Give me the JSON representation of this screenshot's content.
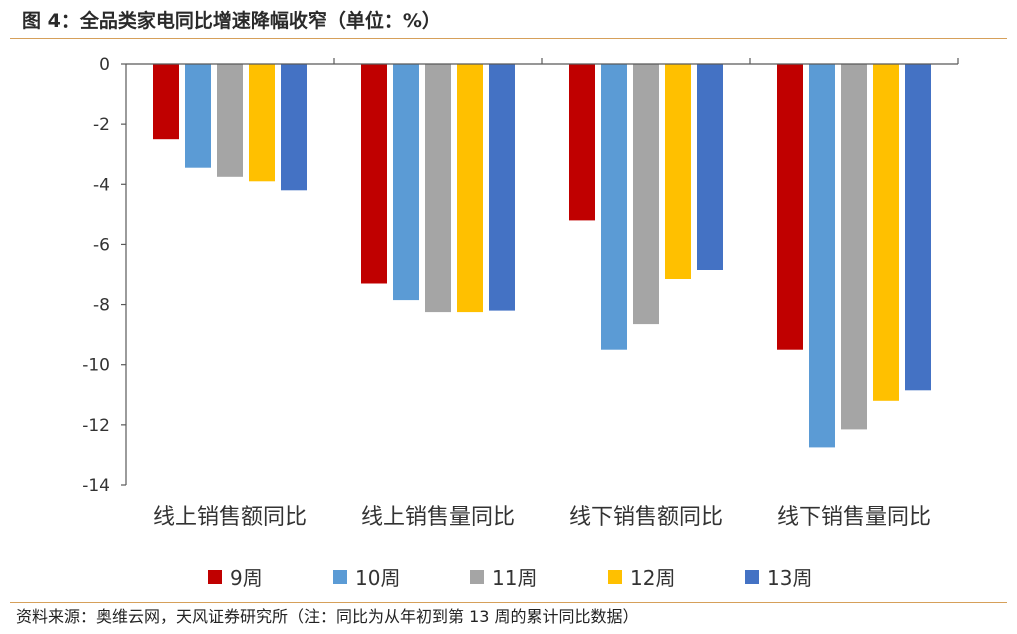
{
  "header": {
    "title": "图 4：全品类家电同比增速降幅收窄（单位：%）"
  },
  "footer": {
    "source": "资料来源：奥维云网，天风证券研究所（注：同比为从年初到第 13 周的累计同比数据）"
  },
  "chart_data": {
    "type": "bar",
    "categories": [
      "线上销售额同比",
      "线上销售量同比",
      "线下销售额同比",
      "线下销售量同比"
    ],
    "series": [
      {
        "name": "9周",
        "color": "#c00000",
        "values": [
          -2.5,
          -7.3,
          -5.2,
          -9.5
        ]
      },
      {
        "name": "10周",
        "color": "#5b9bd5",
        "values": [
          -3.45,
          -7.85,
          -9.5,
          -12.75
        ]
      },
      {
        "name": "11周",
        "color": "#a5a5a5",
        "values": [
          -3.75,
          -8.25,
          -8.65,
          -12.15
        ]
      },
      {
        "name": "12周",
        "color": "#ffc000",
        "values": [
          -3.9,
          -8.25,
          -7.15,
          -11.2
        ]
      },
      {
        "name": "13周",
        "color": "#4472c4",
        "values": [
          -4.2,
          -8.2,
          -6.85,
          -10.85
        ]
      }
    ],
    "yticks": [
      "0",
      "-2",
      "-4",
      "-6",
      "-8",
      "-10",
      "-12",
      "-14"
    ],
    "ylim": [
      -14,
      0
    ],
    "legend_position": "bottom",
    "grid": false
  }
}
